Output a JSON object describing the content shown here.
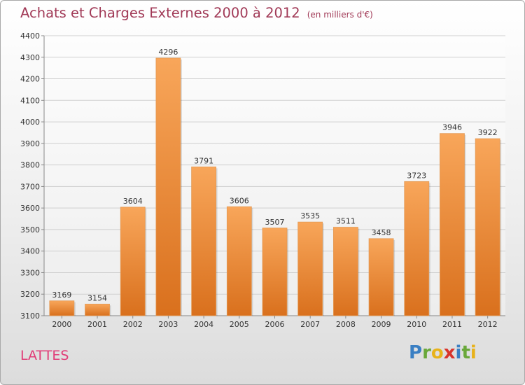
{
  "title": "Achats et Charges Externes 2000 à 2012",
  "unit_note": "(en milliers d'€)",
  "place_label": "LATTES",
  "logo": {
    "letters": [
      "P",
      "r",
      "o",
      "x",
      "i",
      "t",
      "i"
    ],
    "colors": [
      "#3a7fc3",
      "#69a83a",
      "#e8b21a",
      "#d9342b",
      "#3a7fc3",
      "#69a83a",
      "#e8b21a"
    ]
  },
  "colors": {
    "bar_top": "#f8a65a",
    "bar_bottom": "#d9701d",
    "grid": "#cfcfcf"
  },
  "chart_data": {
    "type": "bar",
    "categories": [
      "2000",
      "2001",
      "2002",
      "2003",
      "2004",
      "2005",
      "2006",
      "2007",
      "2008",
      "2009",
      "2010",
      "2011",
      "2012"
    ],
    "values": [
      3169,
      3154,
      3604,
      4296,
      3791,
      3606,
      3507,
      3535,
      3511,
      3458,
      3723,
      3946,
      3922
    ],
    "ylim": [
      3100,
      4400
    ],
    "yticks": [
      3100,
      3200,
      3300,
      3400,
      3500,
      3600,
      3700,
      3800,
      3900,
      4000,
      4100,
      4200,
      4300,
      4400
    ],
    "grid": true
  }
}
